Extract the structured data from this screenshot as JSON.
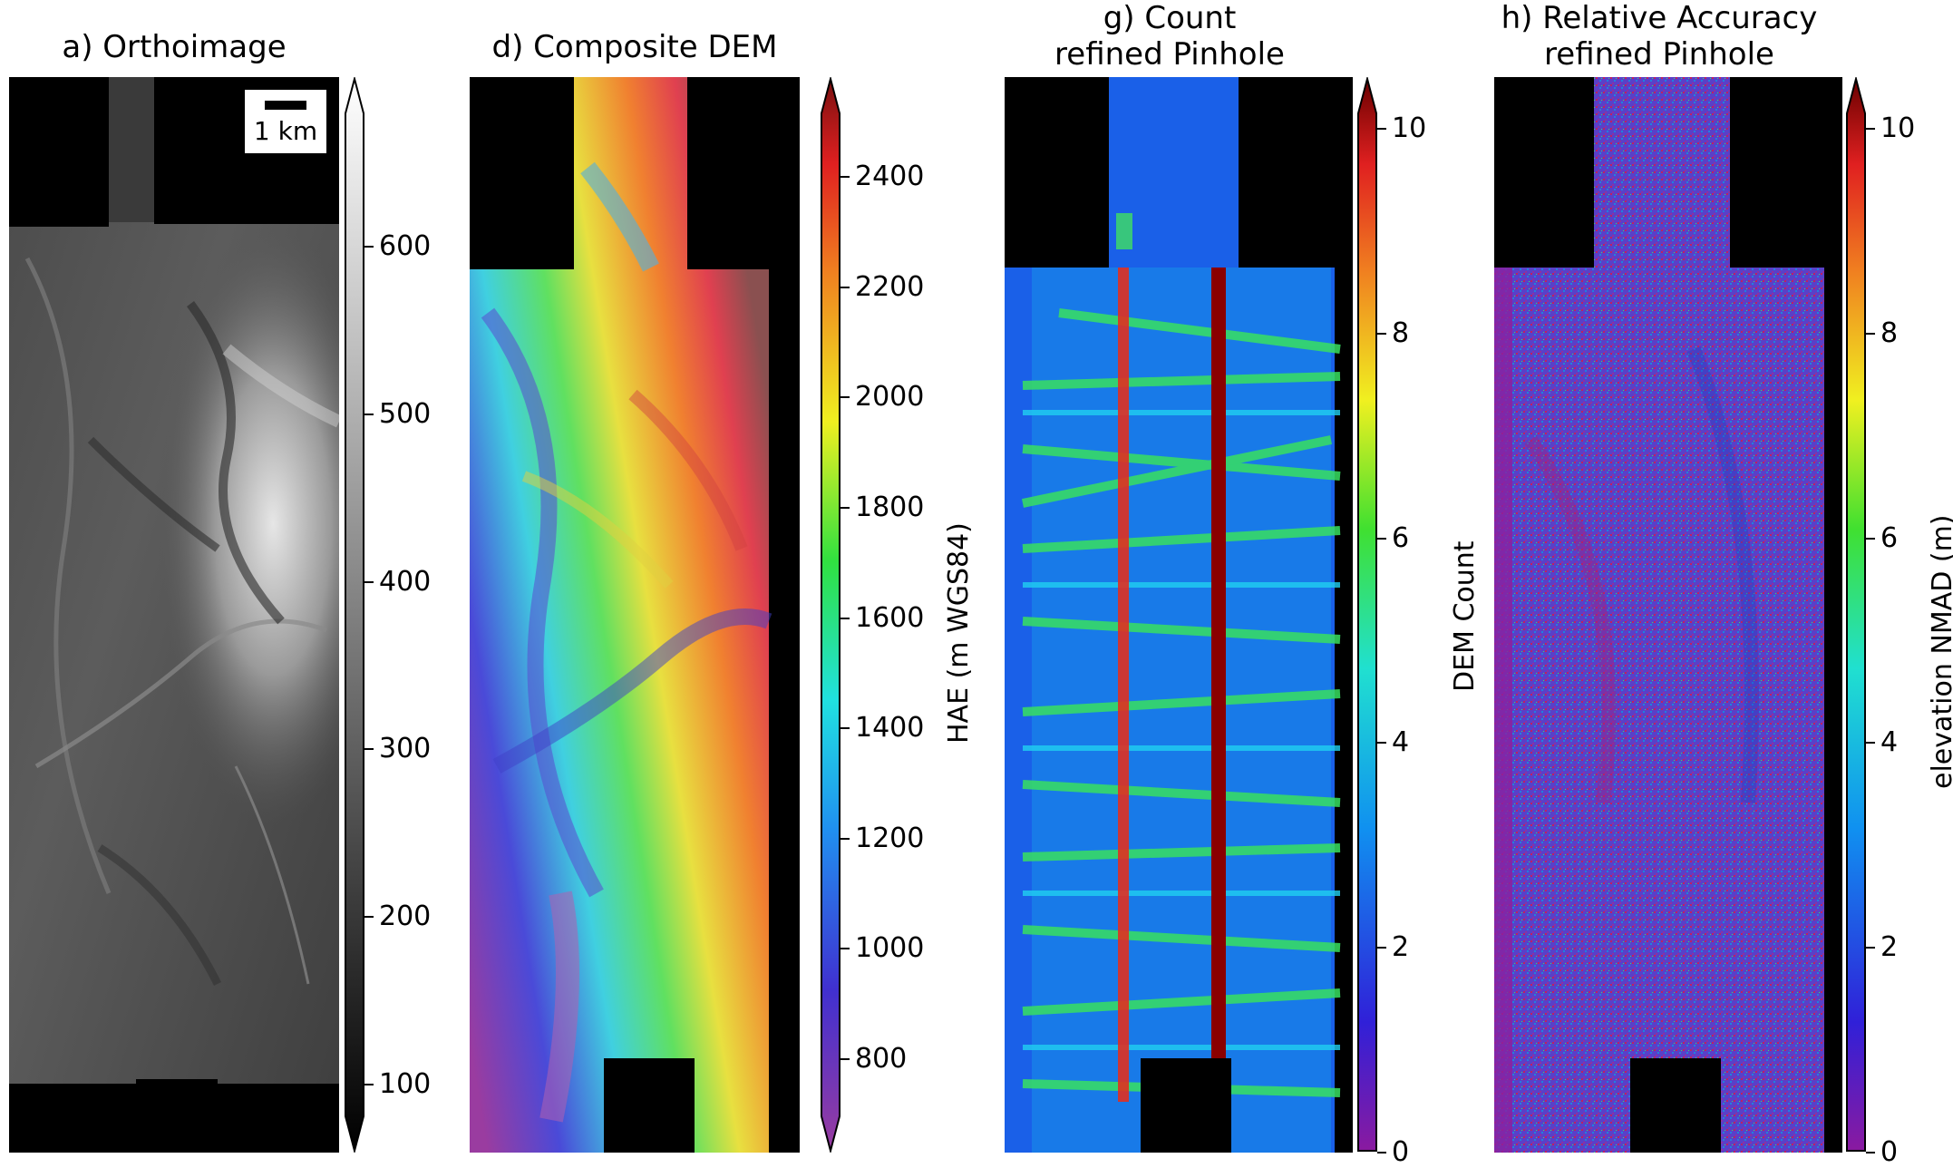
{
  "panels": [
    {
      "id": "a",
      "title_lines": [
        "a) Orthoimage"
      ],
      "scalebar_label": "1 km",
      "colorbar": {
        "ticks": [
          "600",
          "500",
          "400",
          "300",
          "200",
          "100"
        ],
        "label": "",
        "colormap": "gray",
        "extend": "both"
      }
    },
    {
      "id": "d",
      "title_lines": [
        "d) Composite DEM"
      ],
      "colorbar": {
        "ticks": [
          "2400",
          "2200",
          "2000",
          "1800",
          "1600",
          "1400",
          "1200",
          "1000",
          "800"
        ],
        "label": "HAE (m WGS84)",
        "colormap": "rainbow",
        "extend": "both"
      }
    },
    {
      "id": "g",
      "title_lines": [
        "g) Count",
        "refined Pinhole"
      ],
      "colorbar": {
        "ticks": [
          "10",
          "8",
          "6",
          "4",
          "2",
          "0"
        ],
        "label": "DEM Count",
        "colormap": "jet",
        "extend": "max"
      }
    },
    {
      "id": "h",
      "title_lines": [
        "h) Relative Accuracy",
        "refined Pinhole"
      ],
      "colorbar": {
        "ticks": [
          "10",
          "8",
          "6",
          "4",
          "2",
          "0"
        ],
        "label": "elevation NMAD (m)",
        "colormap": "jet",
        "extend": "max"
      }
    }
  ]
}
